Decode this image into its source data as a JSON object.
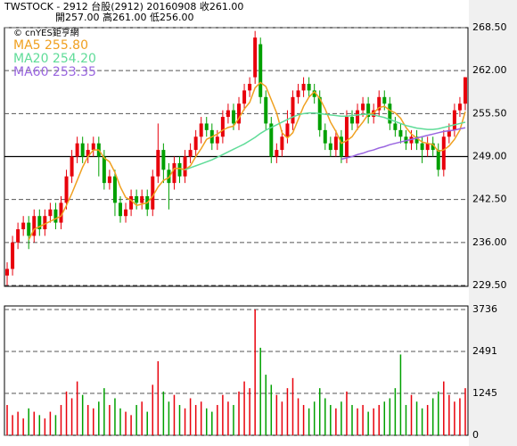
{
  "chart_data": {
    "type": "candlestick",
    "title": "TWSTOCK - 2912 台股(2912) 20160908  收261.00",
    "subtitle": "開257.00  高261.00  低256.00",
    "source": "© cnYES鉅亨網",
    "up_color": "#e8000b",
    "down_color": "#00a000",
    "open": [
      231,
      232,
      236,
      238,
      239,
      237,
      240,
      238,
      240,
      241,
      239,
      242,
      246,
      249,
      251,
      249,
      250,
      251,
      249,
      245,
      246,
      242,
      240,
      241,
      243,
      242,
      243,
      241,
      246,
      250,
      247,
      245,
      248,
      246,
      249,
      250,
      252,
      254,
      253,
      251,
      252,
      255,
      256,
      254,
      257,
      259,
      261,
      266,
      258,
      254,
      249,
      250,
      252,
      254,
      258,
      259,
      260,
      259,
      258,
      253,
      251,
      250,
      252,
      249,
      255,
      254,
      256,
      257,
      255,
      256,
      258,
      257,
      254,
      253,
      252,
      251,
      252,
      251,
      250,
      251,
      250,
      247,
      252,
      253,
      256,
      257
    ],
    "high": [
      233,
      237,
      239,
      240,
      240,
      241,
      241,
      241,
      242,
      242,
      243,
      247,
      250,
      252,
      252,
      251,
      252,
      252,
      250,
      247,
      247,
      243,
      242,
      244,
      244,
      244,
      244,
      247,
      254,
      251,
      248,
      249,
      249,
      250,
      251,
      253,
      255,
      255,
      254,
      253,
      256,
      257,
      257,
      258,
      260,
      261,
      268,
      267,
      259,
      255,
      251,
      253,
      256,
      259,
      260,
      261,
      261,
      260,
      259,
      254,
      252,
      253,
      253,
      256,
      256,
      257,
      258,
      258,
      257,
      259,
      259,
      258,
      255,
      254,
      253,
      253,
      253,
      252,
      252,
      252,
      251,
      253,
      254,
      257,
      258,
      261
    ],
    "low": [
      229.5,
      231,
      235,
      237,
      235,
      236,
      237,
      237,
      239,
      238,
      238,
      241,
      245,
      248,
      248,
      248,
      249,
      246,
      244,
      244,
      240,
      239,
      239,
      240,
      241,
      241,
      240,
      240,
      245,
      245,
      241,
      244,
      245,
      245,
      248,
      249,
      251,
      252,
      250,
      250,
      251,
      254,
      253,
      253,
      256,
      258,
      260,
      257,
      253,
      248,
      248,
      249,
      251,
      253,
      257,
      258,
      258,
      257,
      252,
      250,
      249,
      249,
      248,
      248,
      253,
      253,
      255,
      254,
      254,
      255,
      256,
      253,
      252,
      251,
      250,
      250,
      250,
      248,
      249,
      249,
      246,
      246,
      251,
      252,
      255,
      256
    ],
    "close": [
      232,
      236,
      238,
      239,
      237,
      240,
      238,
      240,
      241,
      239,
      242,
      246,
      249,
      251,
      249,
      250,
      251,
      249,
      245,
      246,
      242,
      240,
      241,
      243,
      242,
      243,
      241,
      246,
      250,
      247,
      245,
      248,
      246,
      249,
      250,
      252,
      254,
      253,
      251,
      252,
      255,
      256,
      254,
      257,
      259,
      260,
      267,
      258,
      254,
      249,
      250,
      252,
      254,
      258,
      259,
      260,
      259,
      258,
      253,
      251,
      250,
      252,
      249,
      255,
      254,
      256,
      257,
      255,
      256,
      258,
      257,
      254,
      253,
      252,
      251,
      252,
      251,
      250,
      251,
      250,
      247,
      252,
      253,
      256,
      257,
      261
    ],
    "volume": [
      900,
      600,
      700,
      500,
      800,
      700,
      600,
      500,
      700,
      600,
      900,
      1300,
      1100,
      1600,
      1200,
      900,
      800,
      1000,
      1400,
      900,
      1100,
      800,
      700,
      600,
      900,
      1000,
      700,
      1500,
      2200,
      1300,
      1000,
      1200,
      900,
      800,
      1100,
      900,
      1000,
      800,
      700,
      900,
      1200,
      1000,
      900,
      1300,
      1600,
      1400,
      3736,
      2600,
      1800,
      1500,
      1200,
      1000,
      1400,
      1700,
      1100,
      900,
      800,
      1000,
      1400,
      1100,
      900,
      800,
      1000,
      1300,
      900,
      800,
      900,
      700,
      800,
      900,
      1000,
      1100,
      1400,
      2400,
      900,
      1200,
      1000,
      800,
      900,
      1100,
      1300,
      1600,
      1200,
      1000,
      1100,
      1400
    ],
    "series": [
      {
        "name": "MA5 255.80",
        "color": "#f0a020",
        "values": [
          null,
          null,
          null,
          null,
          236.4,
          238.0,
          238.4,
          238.8,
          239.2,
          239.6,
          240.0,
          241.6,
          243.4,
          245.4,
          247.4,
          249.0,
          250.0,
          250.0,
          248.8,
          248.2,
          246.6,
          244.4,
          242.8,
          242.4,
          241.6,
          241.8,
          242.0,
          243.0,
          244.4,
          245.4,
          245.8,
          247.2,
          247.2,
          247.0,
          247.6,
          249.0,
          250.2,
          251.6,
          252.0,
          252.4,
          253.0,
          253.4,
          253.6,
          254.8,
          256.2,
          257.2,
          259.4,
          260.2,
          259.6,
          257.6,
          255.6,
          252.6,
          251.8,
          252.6,
          254.6,
          256.6,
          258.0,
          258.8,
          257.8,
          256.2,
          254.2,
          252.8,
          251.0,
          251.4,
          252.0,
          253.2,
          254.2,
          255.4,
          255.6,
          256.4,
          256.6,
          256.0,
          255.6,
          254.8,
          253.4,
          252.4,
          251.8,
          251.2,
          251.0,
          250.8,
          249.8,
          250.0,
          250.6,
          251.6,
          253.0,
          255.8
        ]
      },
      {
        "name": "MA20 254.20",
        "color": "#5fdc98",
        "values": [
          null,
          null,
          null,
          null,
          null,
          null,
          null,
          null,
          null,
          null,
          null,
          null,
          null,
          null,
          null,
          null,
          null,
          null,
          null,
          null,
          null,
          null,
          null,
          null,
          null,
          null,
          null,
          null,
          null,
          null,
          null,
          null,
          null,
          247.0,
          247.3,
          247.6,
          247.9,
          248.2,
          248.5,
          248.9,
          249.3,
          249.7,
          250.1,
          250.5,
          250.9,
          251.4,
          251.9,
          252.5,
          253.0,
          253.4,
          253.8,
          254.2,
          254.6,
          255.0,
          255.3,
          255.5,
          255.6,
          255.6,
          255.5,
          255.4,
          255.3,
          255.2,
          255.1,
          255.1,
          255.2,
          255.3,
          255.4,
          255.4,
          255.3,
          255.1,
          254.9,
          254.6,
          254.3,
          254.0,
          253.7,
          253.5,
          253.3,
          253.2,
          253.1,
          253.1,
          253.2,
          253.4,
          253.6,
          253.8,
          254.0,
          254.2
        ]
      },
      {
        "name": "MA60 253.35",
        "color": "#9a66e0",
        "values": [
          null,
          null,
          null,
          null,
          null,
          null,
          null,
          null,
          null,
          null,
          null,
          null,
          null,
          null,
          null,
          null,
          null,
          null,
          null,
          null,
          null,
          null,
          null,
          null,
          null,
          null,
          null,
          null,
          null,
          null,
          null,
          null,
          null,
          null,
          null,
          null,
          null,
          null,
          null,
          null,
          null,
          null,
          null,
          null,
          null,
          null,
          null,
          null,
          null,
          null,
          null,
          null,
          null,
          null,
          null,
          null,
          null,
          null,
          null,
          null,
          null,
          null,
          248.6,
          248.8,
          249.0,
          249.3,
          249.5,
          249.8,
          250.0,
          250.3,
          250.5,
          250.8,
          251.0,
          251.2,
          251.4,
          251.6,
          251.8,
          252.0,
          252.2,
          252.4,
          252.6,
          252.8,
          252.9,
          253.0,
          253.2,
          253.35
        ]
      }
    ],
    "ylim": [
      229.5,
      268.5
    ],
    "yticks": [
      {
        "value": 268.5,
        "label": "268.50"
      },
      {
        "value": 262,
        "label": "262.00"
      },
      {
        "value": 255.5,
        "label": "255.50"
      },
      {
        "value": 249,
        "label": "249.00"
      },
      {
        "value": 242.5,
        "label": "242.50"
      },
      {
        "value": 236,
        "label": "236.00"
      },
      {
        "value": 229.5,
        "label": "229.50"
      }
    ],
    "reference_line": 249,
    "volume_ylim": [
      0,
      3736
    ],
    "volume_yticks": [
      3736,
      2491,
      1245,
      0
    ],
    "grid": true
  }
}
